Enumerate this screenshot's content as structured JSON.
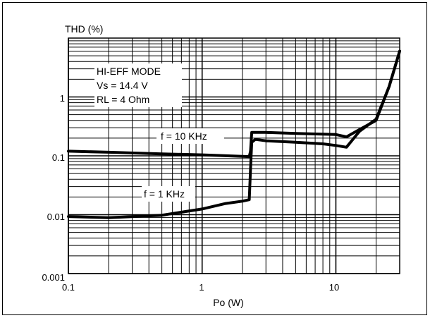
{
  "chart_data": {
    "type": "line",
    "ylabel": "THD (%)",
    "xlabel": "Po (W)",
    "x_scale": "log",
    "y_scale": "log",
    "xlim": [
      0.1,
      30
    ],
    "ylim": [
      0.001,
      10
    ],
    "x_ticks": [
      "0.1",
      "1",
      "10"
    ],
    "y_ticks": [
      "0.001",
      "0.01",
      "0.1",
      "1"
    ],
    "grid": true,
    "info_box": [
      "HI-EFF MODE",
      "Vs = 14.4 V",
      "RL = 4 Ohm"
    ],
    "series": [
      {
        "name": "f = 10 KHz",
        "x": [
          0.1,
          0.2,
          0.5,
          1,
          2,
          2.25,
          2.3,
          2.35,
          3,
          5,
          10,
          12,
          15,
          20,
          25,
          30
        ],
        "y": [
          0.12,
          0.115,
          0.108,
          0.104,
          0.098,
          0.097,
          0.12,
          0.25,
          0.25,
          0.24,
          0.23,
          0.21,
          0.28,
          0.4,
          1.5,
          6.0
        ]
      },
      {
        "name": "f = 1 KHz",
        "x": [
          0.1,
          0.2,
          0.5,
          1,
          1.5,
          2,
          2.25,
          2.3,
          2.35,
          2.5,
          3,
          5,
          8,
          10,
          12,
          15,
          20,
          25,
          30
        ],
        "y": [
          0.0093,
          0.0089,
          0.0098,
          0.0125,
          0.0155,
          0.017,
          0.018,
          0.06,
          0.17,
          0.19,
          0.18,
          0.17,
          0.16,
          0.15,
          0.14,
          0.26,
          0.42,
          1.5,
          6.0
        ]
      }
    ]
  }
}
